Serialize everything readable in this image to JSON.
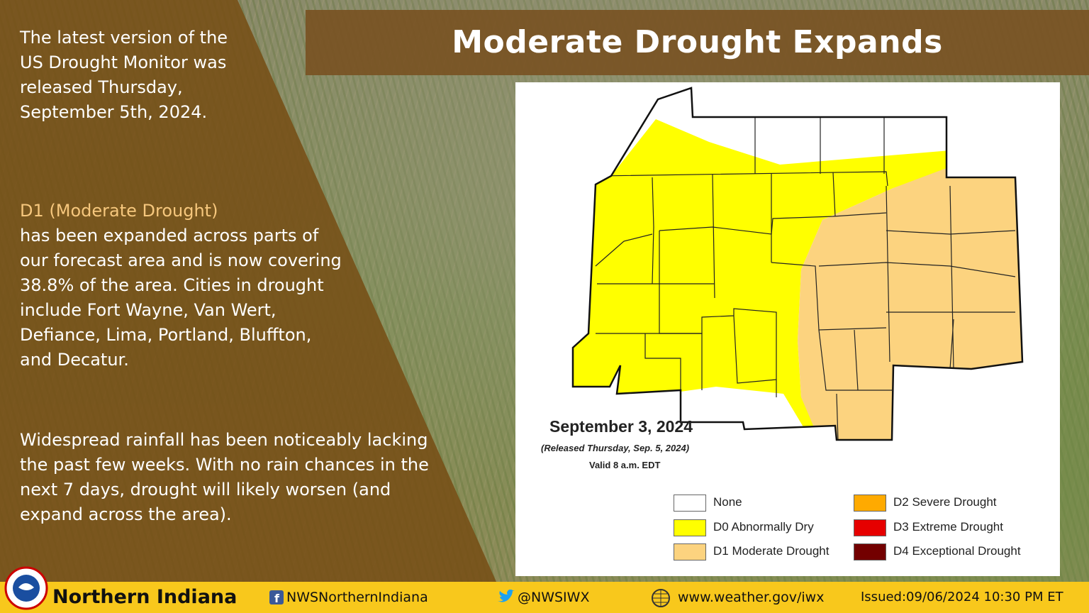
{
  "title": "Moderate Drought Expands",
  "sidebar": {
    "intro": "The latest version of the US Drought Monitor was released Thursday, September 5th, 2024.",
    "highlight": "D1 (Moderate Drought)",
    "body": "has been expanded across parts of our forecast area and is now covering 38.8% of the area. Cities in drought include Fort Wayne, Van Wert, Defiance, Lima, Portland, Bluffton, and Decatur.",
    "outlook": "Widespread rainfall has been noticeably lacking  the past few weeks. With no rain chances in the next 7 days, drought will likely worsen (and expand across the area)."
  },
  "map": {
    "date": "September 3, 2024",
    "released": "(Released Thursday, Sep. 5, 2024)",
    "valid": "Valid 8 a.m. EDT",
    "legend": [
      {
        "label": "None",
        "color": "#ffffff"
      },
      {
        "label": "D0 Abnormally Dry",
        "color": "#ffff00"
      },
      {
        "label": "D1 Moderate Drought",
        "color": "#fcd37f"
      },
      {
        "label": "D2 Severe Drought",
        "color": "#ffaa00"
      },
      {
        "label": "D3 Extreme Drought",
        "color": "#e60000"
      },
      {
        "label": "D4 Exceptional Drought",
        "color": "#730000"
      }
    ]
  },
  "footer": {
    "office": "Northern Indiana",
    "facebook": "NWSNorthernIndiana",
    "twitter": "@NWSIWX",
    "website": "www.weather.gov/iwx",
    "issued": "Issued:09/06/2024 10:30 PM ET"
  }
}
